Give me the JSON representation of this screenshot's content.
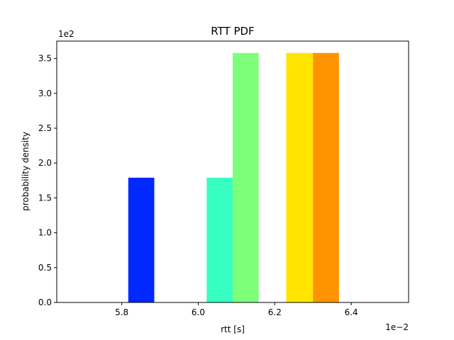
{
  "chart_data": {
    "type": "bar",
    "title": "RTT PDF",
    "xlabel": "rtt [s]",
    "ylabel": "probability density",
    "x_scale_label": "1e−2",
    "y_scale_label": "1e2",
    "xlim": [
      5.63,
      6.55
    ],
    "ylim": [
      0,
      3.75
    ],
    "xticks": [
      5.8,
      6.0,
      6.2,
      6.4
    ],
    "xtick_labels": [
      "5.8",
      "6.0",
      "6.2",
      "6.4"
    ],
    "yticks": [
      0.0,
      0.5,
      1.0,
      1.5,
      2.0,
      2.5,
      3.0,
      3.5
    ],
    "ytick_labels": [
      "0.0",
      "0.5",
      "1.0",
      "1.5",
      "2.0",
      "2.5",
      "3.0",
      "3.5"
    ],
    "grid": false,
    "bars": [
      {
        "x0": 5.817,
        "x1": 5.885,
        "value": 1.79,
        "color": "#0028ff"
      },
      {
        "x0": 6.022,
        "x1": 6.09,
        "value": 1.79,
        "color": "#36ffc1"
      },
      {
        "x0": 6.09,
        "x1": 6.158,
        "value": 3.58,
        "color": "#7dff7a"
      },
      {
        "x0": 6.23,
        "x1": 6.3,
        "value": 3.58,
        "color": "#ffe500"
      },
      {
        "x0": 6.3,
        "x1": 6.368,
        "value": 3.58,
        "color": "#ff9400"
      }
    ]
  }
}
